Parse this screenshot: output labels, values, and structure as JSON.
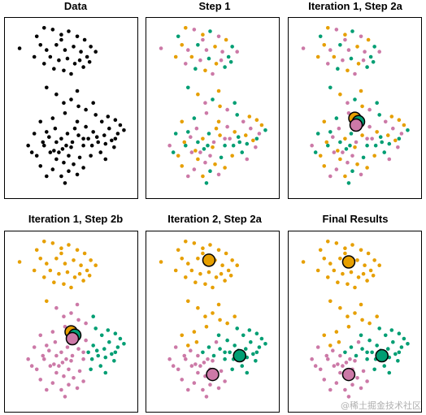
{
  "colors": {
    "black": "#000000",
    "orange": "#E69F00",
    "green": "#009E73",
    "pink": "#CC79A7",
    "frame": "#000000"
  },
  "watermark": "@稀土掘金技术社区",
  "base_points": [
    [
      0.08,
      0.85,
      0
    ],
    [
      0.22,
      0.92,
      0
    ],
    [
      0.28,
      0.97,
      0
    ],
    [
      0.35,
      0.96,
      0
    ],
    [
      0.42,
      0.93,
      0
    ],
    [
      0.48,
      0.95,
      0
    ],
    [
      0.55,
      0.92,
      0
    ],
    [
      0.61,
      0.9,
      0
    ],
    [
      0.66,
      0.86,
      0
    ],
    [
      0.7,
      0.83,
      0
    ],
    [
      0.25,
      0.87,
      0
    ],
    [
      0.3,
      0.84,
      0
    ],
    [
      0.38,
      0.87,
      0
    ],
    [
      0.45,
      0.84,
      0
    ],
    [
      0.52,
      0.86,
      0
    ],
    [
      0.58,
      0.83,
      0
    ],
    [
      0.63,
      0.8,
      0
    ],
    [
      0.33,
      0.8,
      0
    ],
    [
      0.4,
      0.78,
      0
    ],
    [
      0.47,
      0.79,
      0
    ],
    [
      0.53,
      0.76,
      0
    ],
    [
      0.57,
      0.78,
      0
    ],
    [
      0.36,
      0.73,
      0
    ],
    [
      0.44,
      0.72,
      0
    ],
    [
      0.5,
      0.7,
      0
    ],
    [
      0.6,
      0.74,
      0
    ],
    [
      0.28,
      0.76,
      0
    ],
    [
      0.2,
      0.8,
      0
    ],
    [
      0.65,
      0.77,
      0
    ],
    [
      0.42,
      0.9,
      0
    ],
    [
      0.3,
      0.62,
      0
    ],
    [
      0.38,
      0.58,
      0
    ],
    [
      0.44,
      0.53,
      0
    ],
    [
      0.5,
      0.55,
      0
    ],
    [
      0.56,
      0.51,
      0
    ],
    [
      0.62,
      0.49,
      0
    ],
    [
      0.68,
      0.53,
      0
    ],
    [
      0.55,
      0.6,
      0
    ],
    [
      0.45,
      0.47,
      0
    ],
    [
      0.35,
      0.44,
      0
    ],
    [
      0.25,
      0.42,
      0
    ],
    [
      0.3,
      0.36,
      0
    ],
    [
      0.37,
      0.38,
      0
    ],
    [
      0.42,
      0.32,
      1
    ],
    [
      0.47,
      0.35,
      1
    ],
    [
      0.51,
      0.3,
      1
    ],
    [
      0.56,
      0.34,
      1
    ],
    [
      0.6,
      0.28,
      1
    ],
    [
      0.64,
      0.32,
      1
    ],
    [
      0.68,
      0.36,
      1
    ],
    [
      0.72,
      0.3,
      1
    ],
    [
      0.77,
      0.34,
      1
    ],
    [
      0.81,
      0.38,
      1
    ],
    [
      0.86,
      0.32,
      1
    ],
    [
      0.9,
      0.4,
      1
    ],
    [
      0.75,
      0.42,
      1
    ],
    [
      0.7,
      0.46,
      1
    ],
    [
      0.8,
      0.45,
      1
    ],
    [
      0.85,
      0.27,
      1
    ],
    [
      0.74,
      0.24,
      1
    ],
    [
      0.66,
      0.22,
      1
    ],
    [
      0.62,
      0.39,
      1
    ],
    [
      0.78,
      0.29,
      1
    ],
    [
      0.55,
      0.42,
      1
    ],
    [
      0.88,
      0.35,
      1
    ],
    [
      0.71,
      0.33,
      1
    ],
    [
      0.83,
      0.31,
      1
    ],
    [
      0.6,
      0.32,
      1
    ],
    [
      0.93,
      0.37,
      1
    ],
    [
      0.86,
      0.43,
      1
    ],
    [
      0.78,
      0.2,
      1
    ],
    [
      0.67,
      0.28,
      1
    ],
    [
      0.53,
      0.38,
      2
    ],
    [
      0.2,
      0.35,
      2
    ],
    [
      0.15,
      0.28,
      2
    ],
    [
      0.22,
      0.22,
      2
    ],
    [
      0.28,
      0.28,
      2
    ],
    [
      0.33,
      0.24,
      2
    ],
    [
      0.38,
      0.2,
      2
    ],
    [
      0.43,
      0.26,
      2
    ],
    [
      0.48,
      0.22,
      2
    ],
    [
      0.52,
      0.17,
      2
    ],
    [
      0.57,
      0.21,
      2
    ],
    [
      0.35,
      0.14,
      2
    ],
    [
      0.42,
      0.1,
      2
    ],
    [
      0.48,
      0.13,
      2
    ],
    [
      0.3,
      0.1,
      2
    ],
    [
      0.25,
      0.16,
      2
    ],
    [
      0.45,
      0.06,
      2
    ],
    [
      0.55,
      0.11,
      2
    ],
    [
      0.6,
      0.15,
      2
    ],
    [
      0.38,
      0.3,
      2
    ],
    [
      0.32,
      0.33,
      2
    ],
    [
      0.27,
      0.3,
      2
    ],
    [
      0.46,
      0.28,
      2
    ],
    [
      0.4,
      0.24,
      2
    ],
    [
      0.5,
      0.27,
      2
    ],
    [
      0.18,
      0.24,
      2
    ],
    [
      0.44,
      0.18,
      2
    ],
    [
      0.36,
      0.25,
      2
    ]
  ],
  "step1_assignment": [
    2,
    1,
    0,
    2,
    0,
    1,
    2,
    0,
    1,
    2,
    0,
    2,
    1,
    2,
    0,
    2,
    1,
    0,
    2,
    1,
    0,
    2,
    1,
    0,
    2,
    1,
    2,
    0,
    1,
    2,
    1,
    0,
    2,
    1,
    0,
    2,
    1,
    0,
    2,
    1,
    0,
    1,
    2,
    0,
    1,
    2,
    0,
    1,
    2,
    0,
    1,
    0,
    2,
    1,
    0,
    2,
    1,
    0,
    2,
    1,
    0,
    2,
    1,
    0,
    2,
    1,
    0,
    2,
    1,
    0,
    2,
    1,
    0,
    1,
    2,
    0,
    1,
    2,
    0,
    1,
    2,
    0,
    1,
    2,
    0,
    1,
    2,
    0,
    1,
    2,
    0,
    1,
    2,
    0,
    1,
    2,
    0,
    1,
    2,
    0
  ],
  "panels": [
    {
      "title": "Data",
      "mode": "data"
    },
    {
      "title": "Step 1",
      "mode": "step1"
    },
    {
      "title": "Iteration 1, Step 2a",
      "mode": "step1",
      "centroids": [
        [
          0.5,
          0.44,
          0
        ],
        [
          0.53,
          0.42,
          1
        ],
        [
          0.51,
          0.4,
          2
        ]
      ]
    },
    {
      "title": "Iteration 1, Step 2b",
      "mode": "final_early",
      "centroids": [
        [
          0.5,
          0.44,
          0
        ],
        [
          0.53,
          0.42,
          1
        ],
        [
          0.51,
          0.4,
          2
        ]
      ]
    },
    {
      "title": "Iteration 2, Step 2a",
      "mode": "final",
      "centroids": [
        [
          0.47,
          0.86,
          0
        ],
        [
          0.72,
          0.3,
          1
        ],
        [
          0.5,
          0.19,
          2
        ]
      ]
    },
    {
      "title": "Final Results",
      "mode": "final",
      "centroids": [
        [
          0.45,
          0.85,
          0
        ],
        [
          0.72,
          0.3,
          1
        ],
        [
          0.45,
          0.19,
          2
        ]
      ]
    }
  ]
}
